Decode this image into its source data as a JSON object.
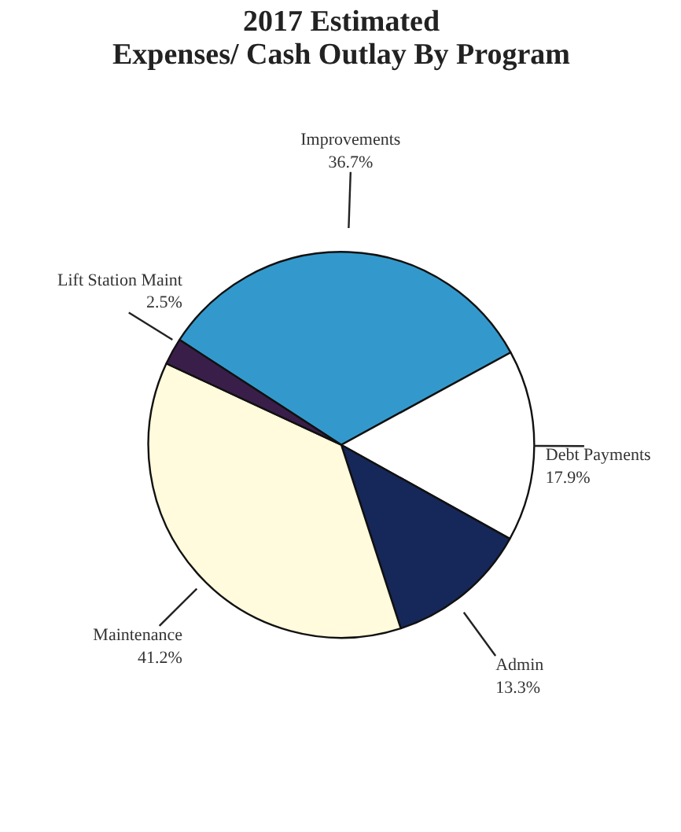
{
  "chart_data": {
    "type": "pie",
    "title": "2017 Estimated\nExpenses/ Cash Outlay By Program",
    "categories": [
      "Improvements",
      "Debt Payments",
      "Admin",
      "Maintenance",
      "Lift Station Maint"
    ],
    "values": [
      36.7,
      17.9,
      13.3,
      41.2,
      2.5
    ],
    "colors": [
      "#3399cc",
      "#ffffff",
      "#16285a",
      "#fffbdc",
      "#3a1e4a"
    ],
    "value_labels": [
      "36.7%",
      "17.9%",
      "13.3%",
      "41.2%",
      "2.5%"
    ]
  }
}
